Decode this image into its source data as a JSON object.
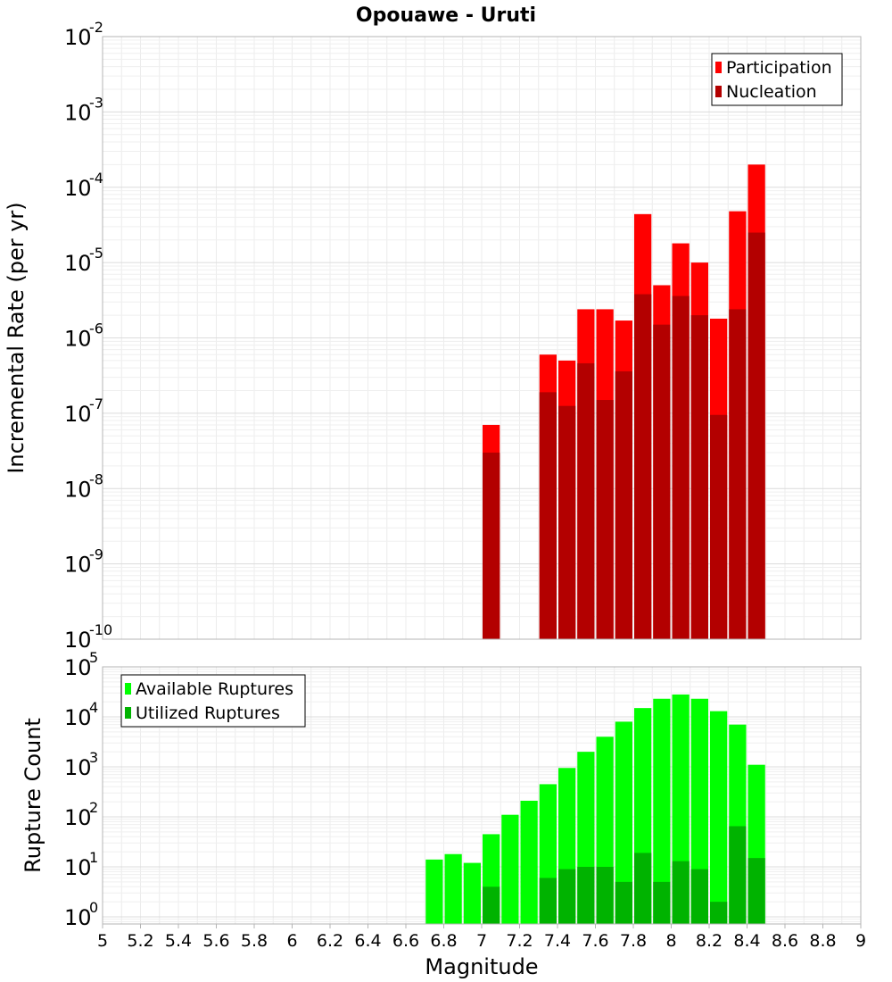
{
  "chart_data": [
    {
      "type": "bar",
      "title": "Opouawe - Uruti",
      "xlabel": "",
      "ylabel": "Incremental Rate (per yr)",
      "log_y": true,
      "xlim": [
        5,
        9
      ],
      "ylim": [
        1e-10,
        0.01
      ],
      "y_tick_exponents": [
        -10,
        -9,
        -8,
        -7,
        -6,
        -5,
        -4,
        -3,
        -2
      ],
      "legend_position": "top-right",
      "overlaid": true,
      "bin_width": 0.1,
      "x": [
        7.05,
        7.35,
        7.45,
        7.55,
        7.65,
        7.75,
        7.85,
        7.95,
        8.05,
        8.15,
        8.25,
        8.35,
        8.45
      ],
      "series": [
        {
          "name": "Participation",
          "color": "#ff0000",
          "values": [
            7e-08,
            6e-07,
            5e-07,
            2.4e-06,
            2.4e-06,
            1.7e-06,
            4.4e-05,
            5e-06,
            1.8e-05,
            1e-05,
            1.8e-06,
            4.8e-05,
            0.0002
          ]
        },
        {
          "name": "Nucleation",
          "color": "#b30000",
          "values": [
            3e-08,
            1.9e-07,
            1.25e-07,
            4.6e-07,
            1.5e-07,
            3.6e-07,
            3.8e-06,
            1.5e-06,
            3.6e-06,
            2e-06,
            9.5e-08,
            2.4e-06,
            2.5e-05
          ]
        }
      ]
    },
    {
      "type": "bar",
      "title": "",
      "xlabel": "Magnitude",
      "ylabel": "Rupture Count",
      "log_y": true,
      "xlim": [
        5,
        9
      ],
      "ylim": [
        0.72,
        100000.0
      ],
      "y_tick_exponents": [
        0,
        1,
        2,
        3,
        4,
        5
      ],
      "x_ticks": [
        "5",
        "5.2",
        "5.4",
        "5.6",
        "5.8",
        "6",
        "6.2",
        "6.4",
        "6.6",
        "6.8",
        "7",
        "7.2",
        "7.4",
        "7.6",
        "7.8",
        "8",
        "8.2",
        "8.4",
        "8.6",
        "8.8",
        "9"
      ],
      "legend_position": "top-left",
      "overlaid": true,
      "bin_width": 0.1,
      "x": [
        6.75,
        6.85,
        6.95,
        7.05,
        7.15,
        7.25,
        7.35,
        7.45,
        7.55,
        7.65,
        7.75,
        7.85,
        7.95,
        8.05,
        8.15,
        8.25,
        8.35,
        8.45
      ],
      "series": [
        {
          "name": "Available Ruptures",
          "color": "#00ff00",
          "values": [
            14,
            18,
            12,
            45,
            110,
            210,
            450,
            950,
            2000,
            4000,
            8000,
            15000,
            23000,
            28000,
            23000,
            13000,
            7000,
            1100
          ]
        },
        {
          "name": "Utilized Ruptures",
          "color": "#00b300",
          "values": [
            null,
            null,
            null,
            4,
            null,
            null,
            6,
            9,
            10,
            10,
            5,
            19,
            5,
            13,
            9,
            2,
            65,
            15
          ]
        }
      ]
    }
  ]
}
